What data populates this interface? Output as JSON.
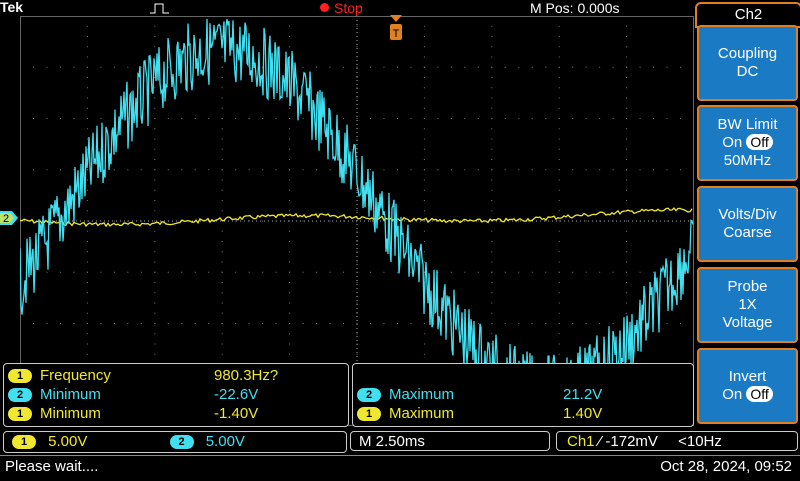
{
  "topbar": {
    "brand": "Tek",
    "run_state": "Stop",
    "m_pos": "M Pos: 0.000s"
  },
  "menu": {
    "title": "Ch2",
    "buttons": [
      {
        "line1": "Coupling",
        "line2": "DC"
      },
      {
        "line1": "BW Limit",
        "line2a": "On",
        "line2b": "Off",
        "line3": "50MHz"
      },
      {
        "line1": "Volts/Div",
        "line2": "Coarse"
      },
      {
        "line1": "Probe",
        "line2": "1X",
        "line3": "Voltage"
      },
      {
        "line1": "Invert",
        "line2a": "On",
        "line2b": "Off"
      }
    ]
  },
  "measurements_left": [
    {
      "ch": "1",
      "name": "Frequency",
      "value": "980.3Hz?"
    },
    {
      "ch": "2",
      "name": "Minimum",
      "value": "-22.6V"
    },
    {
      "ch": "1",
      "name": "Minimum",
      "value": "-1.40V"
    }
  ],
  "measurements_right": [
    {
      "ch": "2",
      "name": "Maximum",
      "value": "21.2V"
    },
    {
      "ch": "1",
      "name": "Maximum",
      "value": "1.40V"
    }
  ],
  "channels": {
    "ch1_label": "1",
    "ch1_scale": "5.00V",
    "ch2_label": "2",
    "ch2_scale": "5.00V",
    "timebase": "M 2.50ms",
    "trigger_src": "Ch1",
    "trigger_level": "-172mV",
    "trigger_freq": "<10Hz"
  },
  "status": {
    "message": "Please wait....",
    "datetime": "Oct 28, 2024, 09:52"
  },
  "markers": {
    "ground_ch2": "2",
    "trigger_t": "T"
  },
  "colors": {
    "ch1": "#f0e830",
    "ch2": "#40e0f0",
    "accent": "#e08020",
    "menu_blue": "#1a7bc4",
    "stop": "#ff2020"
  }
}
